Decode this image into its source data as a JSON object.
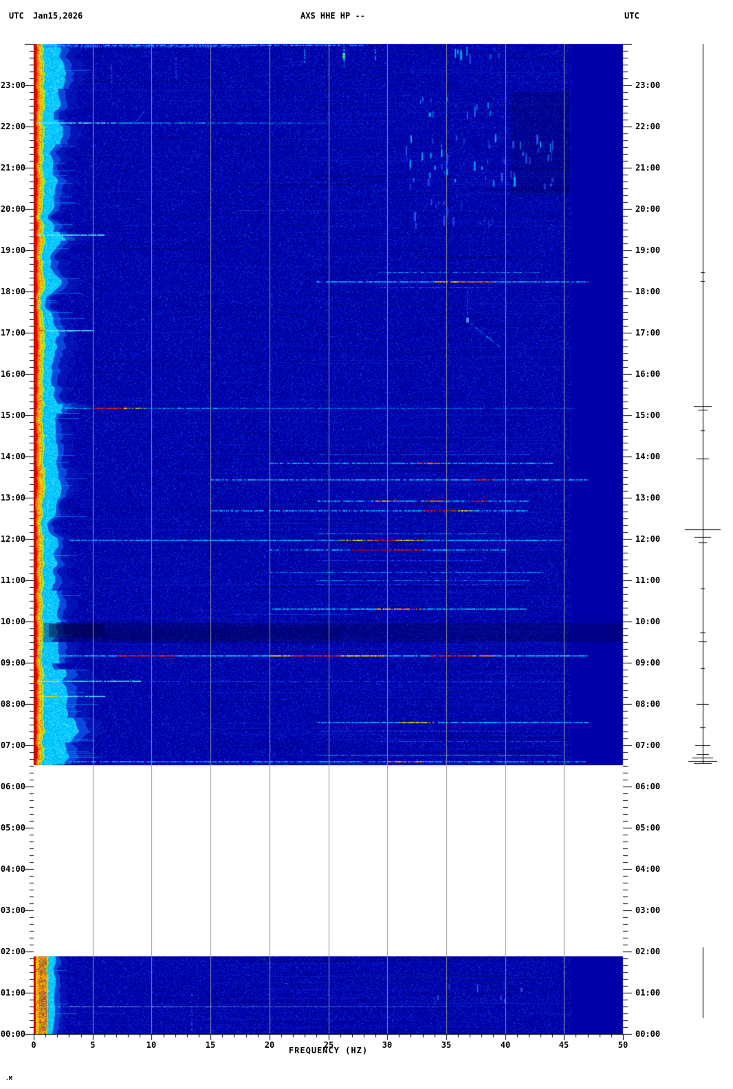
{
  "header": {
    "utc_left": "UTC",
    "date": "Jan15,2026",
    "title": "AXS HHE HP --",
    "utc_right": "UTC"
  },
  "footer": {
    "watermark": ".M"
  },
  "chart_data": {
    "type": "heatmap",
    "title": "AXS HHE HP --",
    "xlabel": "FREQUENCY (HZ)",
    "x_range": [
      0,
      50
    ],
    "x_ticks": [
      "0",
      "5",
      "10",
      "15",
      "20",
      "25",
      "30",
      "35",
      "40",
      "45",
      "50"
    ],
    "y_axis_unit": "UTC",
    "y_ticks": [
      "23:00",
      "22:00",
      "21:00",
      "20:00",
      "19:00",
      "18:00",
      "17:00",
      "16:00",
      "15:00",
      "14:00",
      "13:00",
      "12:00",
      "11:00",
      "10:00",
      "09:00",
      "08:00",
      "07:00",
      "06:00",
      "05:00",
      "04:00",
      "03:00",
      "02:00",
      "01:00",
      "00:00"
    ],
    "gridlines_hz": [
      5,
      10,
      15,
      20,
      25,
      30,
      35,
      40,
      45
    ],
    "colormap": "jet",
    "colors": {
      "background": "#0000AC",
      "flat_zone": "#0000A8",
      "grid": "#949494",
      "axis": "#000000",
      "gap": "#FFFFFF"
    },
    "flat_zone_above_hz": 45.6,
    "data_gap": {
      "from": "01:53",
      "to": "06:31"
    },
    "palette": {
      "c": "#00C8FF",
      "C": "#55E9FF",
      "y": "#FFDC00",
      "o": "#FF8800",
      "r": "#FF2400",
      "R": "#C40000",
      "g": "#55FF6E",
      "lb": "#2E5CFF",
      "w": "#A8ECFF",
      "db": "#1030C8"
    },
    "band_bursts": [
      {
        "from": "06:33",
        "to": "08:50",
        "extra": 18
      },
      {
        "from": "07:05",
        "to": "07:40",
        "extra": 26
      },
      {
        "from": "09:00",
        "to": "09:30",
        "extra": 12
      },
      {
        "from": "10:00",
        "to": "10:45",
        "extra": 7
      },
      {
        "from": "15:04",
        "to": "15:16",
        "extra": 8
      },
      {
        "from": "19:14",
        "to": "19:28",
        "extra": 9
      },
      {
        "from": "21:35",
        "to": "22:10",
        "extra": 7
      },
      {
        "from": "22:55",
        "to": "24:00",
        "extra": 9
      }
    ],
    "dark_bands": [
      {
        "from": "09:30",
        "to": "09:58",
        "f0": 0.8,
        "f1": 50,
        "alpha": 0.3
      },
      {
        "from": "09:37",
        "to": "09:56",
        "f0": 1.3,
        "f1": 6,
        "alpha": 0.5
      },
      {
        "from": "09:33",
        "to": "09:52",
        "f0": 6,
        "f1": 26,
        "alpha": 0.18
      },
      {
        "from": "20:20",
        "to": "22:50",
        "f0": 40.5,
        "f1": 45.5,
        "alpha": 0.22
      }
    ],
    "events": [
      {
        "t": "23:58",
        "f0": 1,
        "f1": 28,
        "base": "c",
        "w": 2,
        "dots": 0.5
      },
      {
        "t": "23:56",
        "f0": 1,
        "f1": 18,
        "base": "lb",
        "w": 2,
        "dots": 0.45
      },
      {
        "t": "22:05",
        "f0": 0.3,
        "f1": 25,
        "base": "c",
        "w": 2,
        "dots": 0.28,
        "fade": true,
        "segs": [
          [
            0.3,
            7,
            "C"
          ]
        ]
      },
      {
        "t": "19:58",
        "f0": 17,
        "f1": 28,
        "base": "lb",
        "w": 1,
        "dots": 0.5,
        "fade": true
      },
      {
        "t": "19:22",
        "f0": 0.3,
        "f1": 6,
        "base": "C",
        "w": 2,
        "dots": 0.12
      },
      {
        "t": "18:28",
        "f0": 29,
        "f1": 43,
        "base": "c",
        "w": 1,
        "dots": 0.5
      },
      {
        "t": "18:14",
        "f0": 24,
        "f1": 47,
        "base": "c",
        "w": 2,
        "dots": 0.3,
        "segs": [
          [
            34,
            36,
            "y"
          ],
          [
            36,
            39,
            "o"
          ]
        ]
      },
      {
        "t": "18:06",
        "f0": 29,
        "f1": 39,
        "base": "lb",
        "w": 1,
        "dots": 0.5
      },
      {
        "t": "17:03",
        "f0": 0.3,
        "f1": 5,
        "base": "C",
        "w": 2,
        "dots": 0.12,
        "segs": [
          [
            0.3,
            1,
            "r"
          ]
        ]
      },
      {
        "t": "15:10",
        "f0": 0.5,
        "f1": 46,
        "base": "c",
        "w": 2,
        "dots": 0.35,
        "fade": true,
        "segs": [
          [
            5,
            7.5,
            "r"
          ],
          [
            7.5,
            9.5,
            "y"
          ]
        ]
      },
      {
        "t": "14:03",
        "f0": 24,
        "f1": 42,
        "base": "lb",
        "w": 1,
        "dots": 0.48
      },
      {
        "t": "13:50",
        "f0": 20,
        "f1": 44,
        "base": "c",
        "w": 2,
        "dots": 0.36,
        "segs": [
          [
            32.5,
            34.5,
            "o"
          ]
        ]
      },
      {
        "t": "13:26",
        "f0": 15,
        "f1": 47,
        "base": "c",
        "w": 2,
        "dots": 0.42,
        "segs": [
          [
            37.5,
            39,
            "r"
          ]
        ]
      },
      {
        "t": "12:55",
        "f0": 24,
        "f1": 42,
        "base": "c",
        "w": 2,
        "dots": 0.36,
        "segs": [
          [
            29,
            31,
            "y"
          ],
          [
            33,
            35,
            "o"
          ],
          [
            37,
            38.5,
            "r"
          ]
        ]
      },
      {
        "t": "12:41",
        "f0": 15,
        "f1": 42,
        "base": "c",
        "w": 2,
        "dots": 0.42,
        "segs": [
          [
            33,
            36,
            "r"
          ],
          [
            36,
            37,
            "y"
          ]
        ]
      },
      {
        "t": "12:08",
        "f0": 24,
        "f1": 40,
        "base": "c",
        "w": 1,
        "dots": 0.5
      },
      {
        "t": "11:58",
        "f0": 3,
        "f1": 45,
        "base": "c",
        "w": 2,
        "dots": 0.3,
        "segs": [
          [
            26,
            29,
            "y"
          ],
          [
            29,
            30.5,
            "r"
          ],
          [
            30.5,
            33,
            "y"
          ]
        ]
      },
      {
        "t": "11:44",
        "f0": 20,
        "f1": 40,
        "base": "c",
        "w": 2,
        "dots": 0.42,
        "segs": [
          [
            27,
            30,
            "R"
          ],
          [
            30,
            33,
            "r"
          ]
        ]
      },
      {
        "t": "11:29",
        "f0": 24,
        "f1": 38,
        "base": "lb",
        "w": 1,
        "dots": 0.5
      },
      {
        "t": "11:12",
        "f0": 20,
        "f1": 43,
        "base": "c",
        "w": 1,
        "dots": 0.46
      },
      {
        "t": "11:00",
        "f0": 24,
        "f1": 42,
        "base": "c",
        "w": 1,
        "dots": 0.5
      },
      {
        "t": "10:54",
        "f0": 24,
        "f1": 42,
        "base": "lb",
        "w": 1,
        "dots": 0.55
      },
      {
        "t": "10:18",
        "f0": 20,
        "f1": 42,
        "base": "c",
        "w": 2,
        "dots": 0.36,
        "segs": [
          [
            29,
            31,
            "y"
          ],
          [
            31,
            33,
            "o"
          ]
        ]
      },
      {
        "t": "10:11",
        "f0": 17,
        "f1": 27,
        "base": "lb",
        "w": 1,
        "dots": 0.5
      },
      {
        "t": "09:10",
        "f0": 0.3,
        "f1": 47,
        "base": "c",
        "w": 2,
        "dots": 0.22,
        "segs": [
          [
            7,
            12,
            "r"
          ],
          [
            20,
            22,
            "y"
          ],
          [
            22,
            26,
            "r"
          ],
          [
            26,
            30,
            "y"
          ],
          [
            33.5,
            37,
            "r"
          ],
          [
            37,
            39,
            "o"
          ]
        ]
      },
      {
        "t": "08:33",
        "f0": 0.3,
        "f1": 9,
        "base": "C",
        "w": 2,
        "dots": 0.15,
        "segs": [
          [
            0.3,
            2,
            "y"
          ]
        ]
      },
      {
        "t": "08:33",
        "f0": 9,
        "f1": 45,
        "base": "lb",
        "w": 1,
        "dots": 0.6
      },
      {
        "t": "08:11",
        "f0": 0.3,
        "f1": 6,
        "base": "C",
        "w": 2,
        "dots": 0.12,
        "segs": [
          [
            0.3,
            2,
            "y"
          ]
        ]
      },
      {
        "t": "07:33",
        "f0": 24,
        "f1": 47,
        "base": "c",
        "w": 2,
        "dots": 0.36,
        "segs": [
          [
            31,
            34,
            "y"
          ]
        ]
      },
      {
        "t": "07:21",
        "f0": 24,
        "f1": 40,
        "base": "lb",
        "w": 1,
        "dots": 0.5
      },
      {
        "t": "07:06",
        "f0": 29,
        "f1": 45,
        "base": "lb",
        "w": 1,
        "dots": 0.55
      },
      {
        "t": "06:46",
        "f0": 24,
        "f1": 45,
        "base": "c",
        "w": 1,
        "dots": 0.42
      },
      {
        "t": "06:36",
        "f0": 3,
        "f1": 47,
        "base": "c",
        "w": 2,
        "dots": 0.4,
        "segs": [
          [
            30,
            33,
            "y"
          ]
        ]
      },
      {
        "t": "00:40",
        "f0": 0.5,
        "f1": 35,
        "base": "w",
        "w": 1,
        "dots": 0.35,
        "fade": true
      }
    ],
    "vertical_streaks": [
      {
        "f": 26.3,
        "t0": "23:55",
        "t1": "23:25",
        "color": "c",
        "w": 3,
        "dots": 0.35
      },
      {
        "f": 26.3,
        "t0": "23:47",
        "t1": "23:40",
        "color": "g",
        "w": 4,
        "dots": 0.05
      },
      {
        "f": 29,
        "t0": "23:52",
        "t1": "23:36",
        "color": "c",
        "w": 2,
        "dots": 0.35
      },
      {
        "f": 23,
        "t0": "23:52",
        "t1": "23:33",
        "color": "c",
        "w": 2,
        "dots": 0.45
      },
      {
        "f": 21.8,
        "t0": "23:45",
        "t1": "23:30",
        "color": "lb",
        "w": 2,
        "dots": 0.45
      },
      {
        "f": 12.1,
        "t0": "23:42",
        "t1": "23:10",
        "color": "lb",
        "w": 2,
        "dots": 0.5
      },
      {
        "f": 6.6,
        "t0": "23:30",
        "t1": "23:05",
        "color": "lb",
        "w": 2,
        "dots": 0.5
      },
      {
        "f": 36,
        "t0": "23:52",
        "t1": "23:44",
        "color": "c",
        "w": 2,
        "dots": 0.3
      },
      {
        "f": 36.8,
        "t0": "18:00",
        "t1": "17:20",
        "color": "lb",
        "w": 2,
        "dots": 0.5
      },
      {
        "f": 36.8,
        "t0": "17:21",
        "t1": "17:14",
        "color": "C",
        "w": 4,
        "dots": 0.05
      },
      {
        "f": 13.4,
        "t0": "01:00",
        "t1": "00:05",
        "color": "lb",
        "w": 2,
        "dots": 0.55
      }
    ],
    "diagonal_streaks": [
      {
        "f0": 37,
        "t0": "17:14",
        "f1": 39.5,
        "t1": "16:40",
        "color": "c",
        "w": 2,
        "dots": 0.45
      },
      {
        "f0": 9.3,
        "t0": "22:22",
        "f1": 8.6,
        "t1": "22:07",
        "color": "lb",
        "w": 2,
        "dots": 0.3
      }
    ],
    "dash_clusters": [
      {
        "t_start": "22:18",
        "t_end": "22:45",
        "f0": 32,
        "f1": 39,
        "n": 14,
        "colors": [
          "c",
          "lb"
        ]
      },
      {
        "t_start": "20:35",
        "t_end": "21:50",
        "f0": 31.5,
        "f1": 44.5,
        "n": 55,
        "colors": [
          "c",
          "lb"
        ]
      },
      {
        "t_start": "19:38",
        "t_end": "20:15",
        "f0": 32,
        "f1": 40,
        "n": 16,
        "colors": [
          "lb",
          "db"
        ]
      },
      {
        "t_start": "00:50",
        "t_end": "01:20",
        "f0": 33,
        "f1": 42,
        "n": 10,
        "colors": [
          "lb",
          "db"
        ]
      },
      {
        "t_start": "23:40",
        "t_end": "23:58",
        "f0": 34.5,
        "f1": 40,
        "n": 8,
        "colors": [
          "lb",
          "c"
        ]
      }
    ],
    "side_trace": {
      "segments": [
        {
          "from": "24:00",
          "to": "06:33"
        },
        {
          "from": "02:06",
          "to": "00:23"
        }
      ],
      "blips": [
        {
          "t": "18:28",
          "hw": 3
        },
        {
          "t": "18:15",
          "hw": 3
        },
        {
          "t": "15:13",
          "hw": 13
        },
        {
          "t": "15:08",
          "hw": 7
        },
        {
          "t": "14:38",
          "hw": 3
        },
        {
          "t": "13:57",
          "hw": 9
        },
        {
          "t": "12:14",
          "hw": 26
        },
        {
          "t": "12:03",
          "hw": 12
        },
        {
          "t": "11:55",
          "hw": 6
        },
        {
          "t": "10:48",
          "hw": 3
        },
        {
          "t": "09:44",
          "hw": 4
        },
        {
          "t": "09:31",
          "hw": 6
        },
        {
          "t": "08:52",
          "hw": 3
        },
        {
          "t": "08:00",
          "hw": 9
        },
        {
          "t": "07:26",
          "hw": 4
        },
        {
          "t": "07:00",
          "hw": 11
        },
        {
          "t": "06:47",
          "hw": 9
        },
        {
          "t": "06:42",
          "hw": 15
        },
        {
          "t": "06:37",
          "hw": 21
        },
        {
          "t": "06:34",
          "hw": 13
        }
      ]
    }
  }
}
